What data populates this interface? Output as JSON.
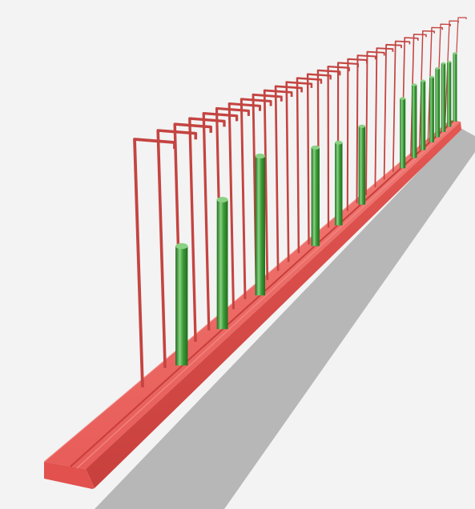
{
  "scene": {
    "background": "#f3f3f3",
    "colors": {
      "rail_top": "#ef6863",
      "rail_front": "#d94a47",
      "rail_groove": "#c73e3b",
      "rail_edge": "#f08a86",
      "wire": "#c44441",
      "wire_highlight": "#e07a76",
      "stem": "#3e9e3a",
      "stem_highlight": "#8ad184",
      "stem_shadow": "#1f6d1d",
      "shadow": "#b7b7b7"
    },
    "wire_count": 30,
    "stem_count": 14
  }
}
